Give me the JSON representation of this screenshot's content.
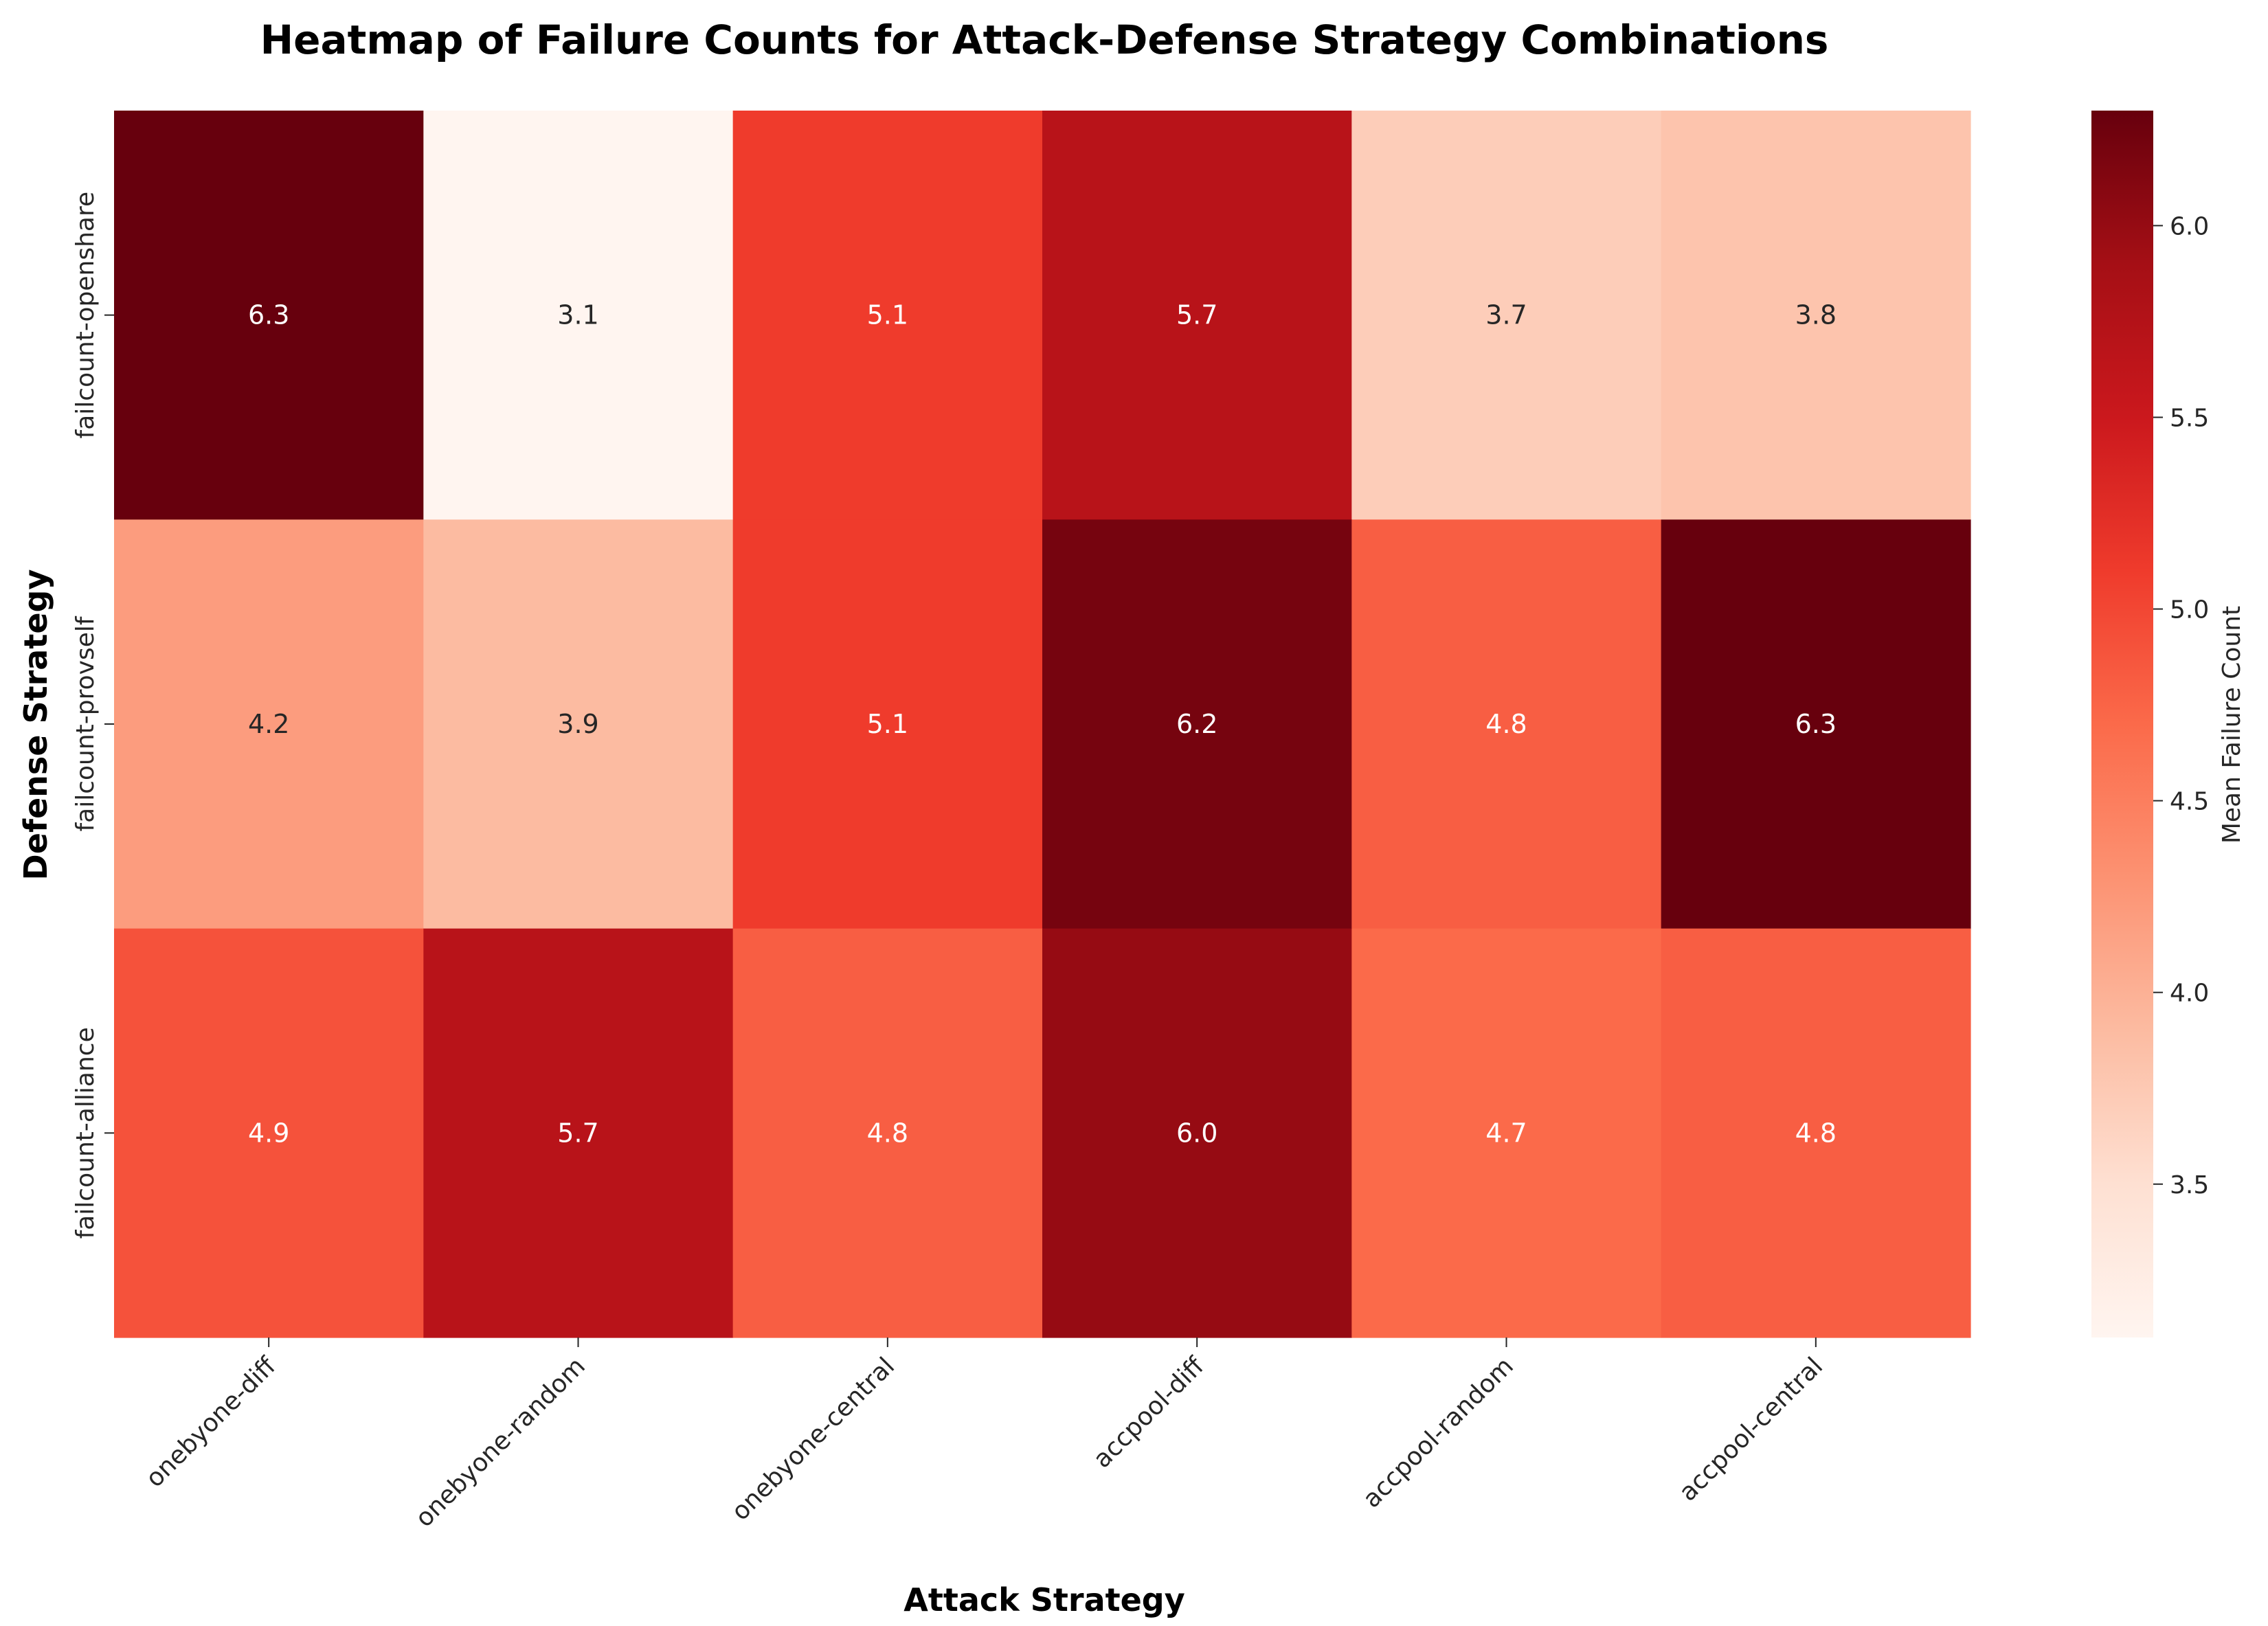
{
  "chart_data": {
    "type": "heatmap",
    "title": "Heatmap of Failure Counts for Attack-Defense Strategy Combinations",
    "xlabel": "Attack Strategy",
    "ylabel": "Defense Strategy",
    "x_categories": [
      "onebyone-diff",
      "onebyone-random",
      "onebyone-central",
      "accpool-diff",
      "accpool-random",
      "accpool-central"
    ],
    "y_categories": [
      "failcount-openshare",
      "failcount-provself",
      "failcount-alliance"
    ],
    "values": [
      [
        6.3,
        3.1,
        5.1,
        5.7,
        3.7,
        3.8
      ],
      [
        4.2,
        3.9,
        5.1,
        6.2,
        4.8,
        6.3
      ],
      [
        4.9,
        5.7,
        4.8,
        6.0,
        4.7,
        4.8
      ]
    ],
    "value_format": "one decimal place",
    "colormap": "Reds",
    "color_stops": [
      "#fff5f0",
      "#fee0d2",
      "#fcbba1",
      "#fc9272",
      "#fb6a4a",
      "#ef3b2c",
      "#cb181d",
      "#a50f15",
      "#67000d"
    ],
    "colorbar": {
      "label": "Mean Failure Count",
      "range": [
        3.1,
        6.3
      ],
      "ticks": [
        "3.5",
        "4.0",
        "4.5",
        "5.0",
        "5.5",
        "6.0"
      ]
    }
  }
}
